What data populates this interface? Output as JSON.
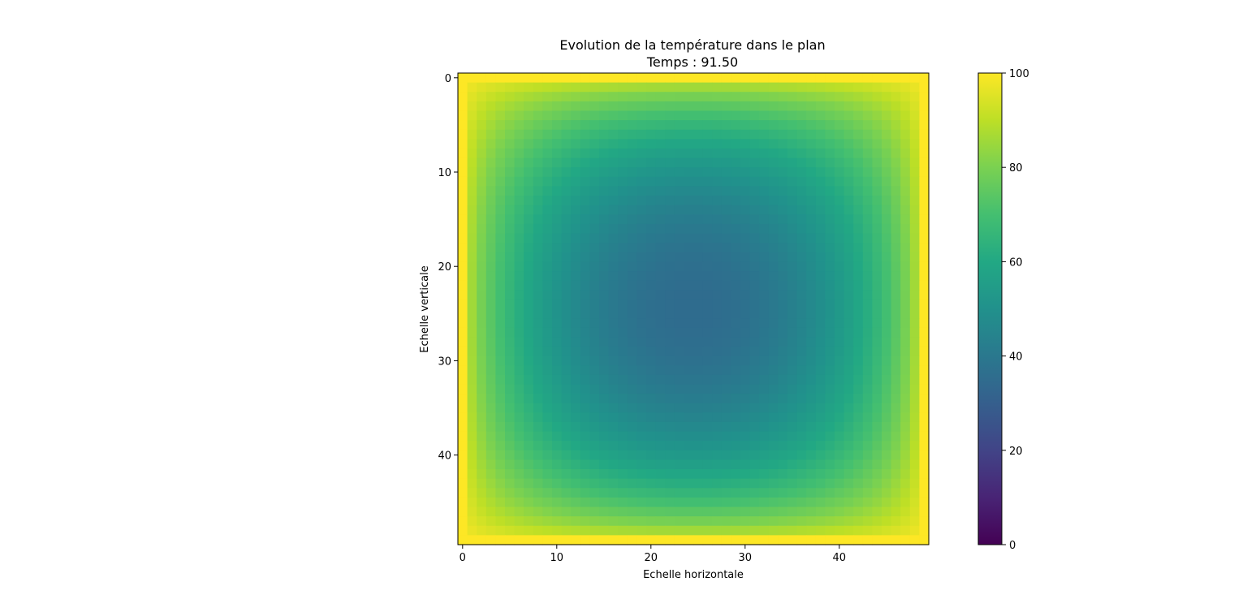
{
  "chart_data": {
    "type": "heatmap",
    "title": "Evolution de la température dans le plan",
    "subtitle": "Temps : 91.50",
    "xlabel": "Echelle horizontale",
    "ylabel": "Echelle verticale",
    "grid_size": [
      50,
      50
    ],
    "xlim": [
      -0.5,
      49.5
    ],
    "ylim": [
      49.5,
      -0.5
    ],
    "x_ticks": [
      0,
      10,
      20,
      30,
      40
    ],
    "x_tick_labels": [
      "0",
      "10",
      "20",
      "30",
      "40"
    ],
    "y_ticks": [
      0,
      10,
      20,
      30,
      40
    ],
    "y_tick_labels": [
      "0",
      "10",
      "20",
      "30",
      "40"
    ],
    "boundary_value": 100,
    "center_value": 35,
    "colormap": "viridis",
    "grid": false,
    "colorbar": {
      "range": [
        0,
        100
      ],
      "ticks": [
        0,
        20,
        40,
        60,
        80,
        100
      ],
      "tick_labels": [
        "0",
        "20",
        "40",
        "60",
        "80",
        "100"
      ]
    }
  }
}
